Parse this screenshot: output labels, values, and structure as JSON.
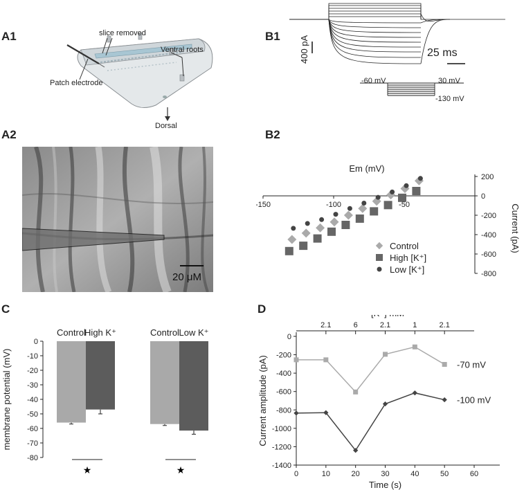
{
  "panels": {
    "a1": {
      "label": "A1",
      "slice_removed": "slice removed",
      "ventral_roots": "Ventral roots",
      "patch_electrode": "Patch electrode",
      "dorsal": "Dorsal"
    },
    "a2": {
      "label": "A2",
      "scale_bar": "20 μM"
    },
    "b1": {
      "label": "B1",
      "current_scale": "400 pA",
      "time_scale": "25 ms",
      "protocol_hold": "-60 mV",
      "protocol_top": "30 mV",
      "protocol_bottom": "-130 mV"
    },
    "b2": {
      "label": "B2"
    },
    "c": {
      "label": "C"
    },
    "d": {
      "label": "D"
    }
  },
  "colors": {
    "control": "#aaaaaa",
    "high_k": "#666666",
    "low_k": "#444444",
    "bar_control": "#a9a9a9",
    "bar_treat": "#5c5c5c",
    "line_70": "#aaaaaa",
    "line_100": "#444444"
  },
  "chart_data": [
    {
      "id": "B2",
      "type": "scatter",
      "xlabel": "Em (mV)",
      "ylabel": "Current (pA)",
      "xlim": [
        -150,
        0
      ],
      "ylim": [
        -800,
        200
      ],
      "xticks": [
        -150,
        -100,
        -50
      ],
      "yticks": [
        200,
        0,
        -200,
        -400,
        -600,
        -800
      ],
      "legend_position": "bottom-right",
      "series": [
        {
          "name": "Control",
          "marker": "diamond",
          "x": [
            -130,
            -120,
            -110,
            -100,
            -90,
            -80,
            -70,
            -60,
            -50,
            -40
          ],
          "y": [
            -450,
            -385,
            -330,
            -270,
            -200,
            -130,
            -55,
            10,
            75,
            155
          ]
        },
        {
          "name": "High [K⁺]",
          "marker": "square",
          "x": [
            -130,
            -120,
            -110,
            -100,
            -90,
            -80,
            -70,
            -60,
            -50,
            -40
          ],
          "y": [
            -570,
            -515,
            -440,
            -370,
            -300,
            -235,
            -160,
            -95,
            -20,
            50
          ]
        },
        {
          "name": "Low [K⁺]",
          "marker": "circle",
          "x": [
            -130,
            -120,
            -110,
            -100,
            -90,
            -80,
            -70,
            -60,
            -50,
            -40
          ],
          "y": [
            -335,
            -285,
            -245,
            -190,
            -130,
            -75,
            -15,
            40,
            105,
            180
          ]
        }
      ]
    },
    {
      "id": "C",
      "type": "bar",
      "ylabel": "membrane potential  (mV)",
      "ylim": [
        -80,
        0
      ],
      "yticks": [
        0,
        -10,
        -20,
        -30,
        -40,
        -50,
        -60,
        -70,
        -80
      ],
      "groups": [
        {
          "categories": [
            "Control",
            "High K⁺"
          ],
          "values": [
            -56,
            -47
          ],
          "errors": [
            1,
            3
          ],
          "significance": "★"
        },
        {
          "categories": [
            "Control",
            "Low K⁺"
          ],
          "values": [
            -57,
            -61.5
          ],
          "errors": [
            1,
            2.5
          ],
          "significance": "★"
        }
      ]
    },
    {
      "id": "D",
      "type": "line",
      "xlabel": "Time (s)",
      "ylabel": "Current amplitude (pA)",
      "top_axis_label": "[K⁺] mM",
      "top_axis_ticks": [
        "2.1",
        "6",
        "2.1",
        "1",
        "2.1"
      ],
      "xlim": [
        0,
        60
      ],
      "ylim": [
        -1400,
        0
      ],
      "xticks": [
        0,
        10,
        20,
        30,
        40,
        50,
        60
      ],
      "yticks": [
        0,
        -200,
        -400,
        -600,
        -800,
        -1000,
        -1200,
        -1400
      ],
      "series": [
        {
          "name": "-70 mV",
          "marker": "square",
          "x": [
            0,
            10,
            20,
            30,
            40,
            50
          ],
          "y": [
            -255,
            -255,
            -605,
            -195,
            -115,
            -305
          ]
        },
        {
          "name": "-100 mV",
          "marker": "diamond",
          "x": [
            0,
            10,
            20,
            30,
            40,
            50
          ],
          "y": [
            -835,
            -830,
            -1240,
            -735,
            -615,
            -690
          ]
        }
      ]
    }
  ]
}
